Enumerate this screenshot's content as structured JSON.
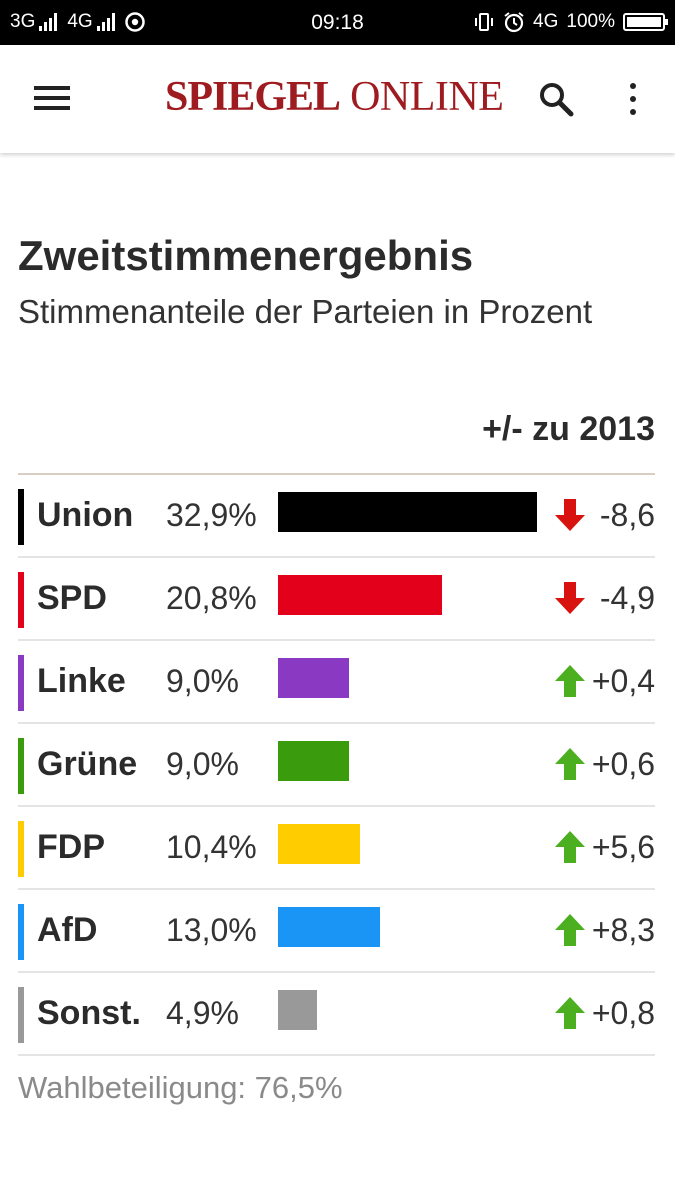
{
  "status_bar": {
    "network1": "3G",
    "network2": "4G",
    "time": "09:18",
    "network3": "4G",
    "battery": "100%",
    "battery_level": 1.0
  },
  "app_bar": {
    "logo_part1": "SPIEGEL",
    "logo_part2": "ONLINE",
    "menu_icon": "menu-icon",
    "search_icon": "search-icon",
    "more_icon": "more-vert-icon"
  },
  "content": {
    "title": "Zweitstimmenergebnis",
    "subtitle": "Stimmenanteile der Parteien in Prozent",
    "delta_header": "+/- zu 2013",
    "turnout": "Wahlbeteiligung: 76,5%"
  },
  "chart_data": {
    "type": "bar",
    "categories": [
      "Union",
      "SPD",
      "Linke",
      "Grüne",
      "FDP",
      "AfD",
      "Sonst."
    ],
    "values": [
      32.9,
      20.8,
      9.0,
      9.0,
      10.4,
      13.0,
      4.9
    ],
    "value_labels": [
      "32,9%",
      "20,8%",
      "9,0%",
      "9,0%",
      "10,4%",
      "13,0%",
      "4,9%"
    ],
    "changes": [
      -8.6,
      -4.9,
      0.4,
      0.6,
      5.6,
      8.3,
      0.8
    ],
    "change_labels": [
      "-8,6",
      "-4,9",
      "+0,4",
      "+0,6",
      "+5,6",
      "+8,3",
      "+0,8"
    ],
    "colors": [
      "#000000",
      "#e2001a",
      "#8a3ac2",
      "#3a9c0c",
      "#ffcc00",
      "#1a94f5",
      "#999999"
    ],
    "arrow_up_color": "#4caf1f",
    "arrow_down_color": "#d8120f",
    "xlim": [
      0,
      33
    ]
  }
}
